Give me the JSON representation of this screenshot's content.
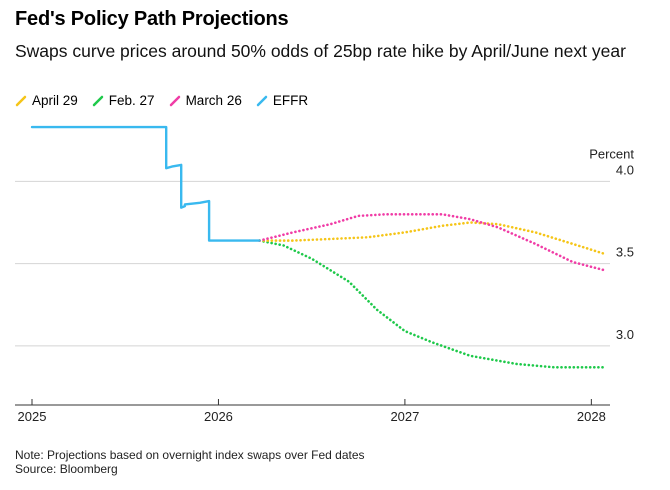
{
  "title": "Fed's Policy Path Projections",
  "subtitle": "Swaps curve prices around 50% odds of 25bp rate hike by April/June next year",
  "note": "Note: Projections based on overnight index swaps over Fed dates",
  "source": "Source: Bloomberg",
  "chart_data": {
    "type": "line",
    "title": "Fed's Policy Path Projections",
    "ylabel": "Percent",
    "xlabel": "",
    "xlim": [
      2025.0,
      2028.1
    ],
    "ylim": [
      2.72,
      4.3
    ],
    "x_ticks": [
      2025,
      2026,
      2027,
      2028
    ],
    "x_tick_labels": [
      "2025",
      "2026",
      "2027",
      "2028"
    ],
    "y_ticks": [
      3.0,
      3.5,
      4.0
    ],
    "y_tick_labels": [
      "3.0",
      "3.5",
      "4.0"
    ],
    "grid": "horizontal",
    "legend_position": "top-left",
    "series": [
      {
        "name": "April 29",
        "color": "#f5c518",
        "style": "dotted",
        "x": [
          2026.22,
          2026.4,
          2026.6,
          2026.8,
          2027.0,
          2027.2,
          2027.35,
          2027.5,
          2027.7,
          2027.9,
          2028.07
        ],
        "y": [
          3.64,
          3.64,
          3.65,
          3.66,
          3.69,
          3.73,
          3.75,
          3.74,
          3.69,
          3.62,
          3.56
        ]
      },
      {
        "name": "Feb. 27",
        "color": "#1ec94a",
        "style": "dotted",
        "x": [
          2026.22,
          2026.35,
          2026.5,
          2026.7,
          2026.85,
          2027.0,
          2027.15,
          2027.35,
          2027.6,
          2027.8,
          2028.07
        ],
        "y": [
          3.64,
          3.61,
          3.53,
          3.39,
          3.22,
          3.09,
          3.02,
          2.94,
          2.89,
          2.87,
          2.87
        ]
      },
      {
        "name": "March 26",
        "color": "#f03ca6",
        "style": "dotted",
        "x": [
          2026.22,
          2026.4,
          2026.6,
          2026.75,
          2026.9,
          2027.05,
          2027.2,
          2027.35,
          2027.5,
          2027.7,
          2027.9,
          2028.07
        ],
        "y": [
          3.64,
          3.69,
          3.74,
          3.79,
          3.8,
          3.8,
          3.8,
          3.77,
          3.72,
          3.62,
          3.51,
          3.46
        ]
      },
      {
        "name": "EFFR",
        "color": "#39b9ef",
        "style": "solid",
        "x": [
          2025.0,
          2025.72,
          2025.72,
          2025.75,
          2025.8,
          2025.8,
          2025.82,
          2025.82,
          2025.9,
          2025.95,
          2025.95,
          2026.22
        ],
        "y": [
          4.33,
          4.33,
          4.08,
          4.09,
          4.1,
          3.84,
          3.85,
          3.86,
          3.87,
          3.88,
          3.64,
          3.64
        ]
      }
    ]
  }
}
